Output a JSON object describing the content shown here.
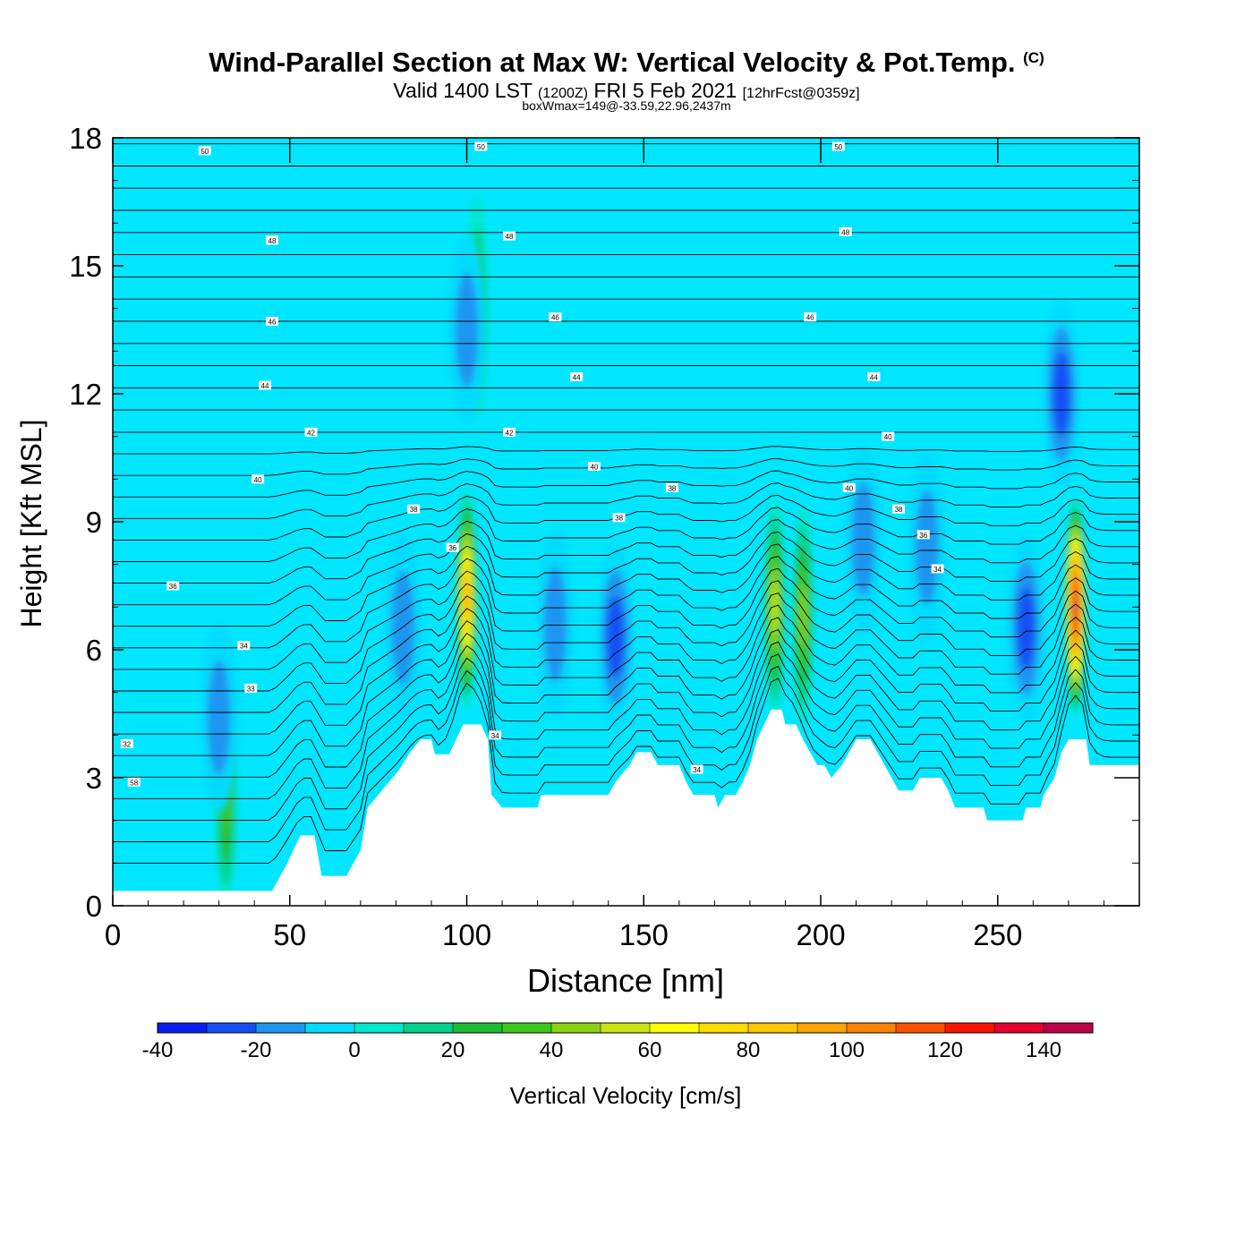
{
  "title": {
    "main": "Wind-Parallel Section at Max W: Vertical Velocity & Pot.Temp.",
    "copyright": "(C)",
    "valid_a": "Valid 1400 LST",
    "valid_z": "(1200Z)",
    "valid_b": "FRI 5 Feb 2021",
    "fcst": "[12hrFcst@0359z]",
    "box": "boxWmax=149@-33.59,22.96,2437m"
  },
  "chart_data": {
    "type": "heatmap",
    "xlabel": "Distance [nm]",
    "ylabel": "Height [Kft MSL]",
    "xlim": [
      0,
      290
    ],
    "ylim": [
      0,
      18
    ],
    "xticks": [
      0,
      50,
      100,
      150,
      200,
      250
    ],
    "yticks": [
      0,
      3,
      6,
      9,
      12,
      15,
      18
    ],
    "background_color": "#00e6ff",
    "terrain_color": "#ffffff",
    "colorbar": {
      "label": "Vertical Velocity [cm/s]",
      "bins": [
        -40,
        -30,
        -20,
        -10,
        0,
        10,
        20,
        30,
        40,
        50,
        60,
        70,
        80,
        90,
        100,
        110,
        120,
        130,
        140,
        150
      ],
      "tick_labels": [
        "-40",
        "-20",
        "0",
        "20",
        "40",
        "60",
        "80",
        "100",
        "120",
        "140"
      ],
      "colors": [
        "#0a1ef0",
        "#1450f5",
        "#1e96f0",
        "#00dcff",
        "#00e8cc",
        "#00d28c",
        "#1ebe32",
        "#3cc81e",
        "#8cd214",
        "#c8e614",
        "#ffff00",
        "#ffdc00",
        "#ffc800",
        "#ffa500",
        "#ff8200",
        "#ff5000",
        "#ff1400",
        "#e6002d",
        "#be0046"
      ]
    },
    "terrain_kft": [
      [
        0,
        0.35
      ],
      [
        45,
        0.35
      ],
      [
        47,
        0.65
      ],
      [
        49,
        0.95
      ],
      [
        51,
        1.3
      ],
      [
        53,
        1.65
      ],
      [
        57,
        1.65
      ],
      [
        59,
        0.7
      ],
      [
        66,
        0.7
      ],
      [
        68,
        1.0
      ],
      [
        70,
        1.3
      ],
      [
        72,
        2.3
      ],
      [
        75,
        2.6
      ],
      [
        78,
        2.9
      ],
      [
        81,
        3.2
      ],
      [
        84,
        3.6
      ],
      [
        87,
        3.9
      ],
      [
        90,
        3.9
      ],
      [
        91,
        3.55
      ],
      [
        95,
        3.55
      ],
      [
        97,
        3.9
      ],
      [
        99,
        4.25
      ],
      [
        104,
        4.25
      ],
      [
        106,
        3.9
      ],
      [
        107,
        2.6
      ],
      [
        110,
        2.3
      ],
      [
        120,
        2.3
      ],
      [
        121,
        2.6
      ],
      [
        140,
        2.6
      ],
      [
        142,
        2.9
      ],
      [
        146,
        3.3
      ],
      [
        148,
        3.6
      ],
      [
        152,
        3.6
      ],
      [
        154,
        3.3
      ],
      [
        160,
        3.3
      ],
      [
        162,
        2.9
      ],
      [
        164,
        2.6
      ],
      [
        170,
        2.6
      ],
      [
        171,
        2.3
      ],
      [
        173,
        2.6
      ],
      [
        176,
        2.6
      ],
      [
        178,
        2.9
      ],
      [
        180,
        3.3
      ],
      [
        182,
        3.9
      ],
      [
        184,
        4.25
      ],
      [
        186,
        4.6
      ],
      [
        189,
        4.6
      ],
      [
        190,
        4.25
      ],
      [
        193,
        4.25
      ],
      [
        195,
        3.9
      ],
      [
        197,
        3.6
      ],
      [
        199,
        3.3
      ],
      [
        201,
        3.3
      ],
      [
        203,
        3.0
      ],
      [
        206,
        3.3
      ],
      [
        208,
        3.6
      ],
      [
        210,
        3.9
      ],
      [
        214,
        3.9
      ],
      [
        216,
        3.6
      ],
      [
        218,
        3.3
      ],
      [
        220,
        3.0
      ],
      [
        222,
        2.7
      ],
      [
        226,
        2.7
      ],
      [
        228,
        3.0
      ],
      [
        234,
        3.0
      ],
      [
        236,
        2.7
      ],
      [
        238,
        2.3
      ],
      [
        246,
        2.3
      ],
      [
        247,
        2.0
      ],
      [
        257,
        2.0
      ],
      [
        258,
        2.3
      ],
      [
        262,
        2.3
      ],
      [
        263,
        2.6
      ],
      [
        266,
        3.0
      ],
      [
        268,
        3.6
      ],
      [
        270,
        3.9
      ],
      [
        275,
        3.9
      ],
      [
        276,
        3.3
      ],
      [
        290,
        3.3
      ]
    ],
    "vertical_velocity_cells": [
      {
        "x": 100,
        "y": 7.2,
        "peak": 95,
        "note": "updraft"
      },
      {
        "x": 187,
        "y": 7.0,
        "peak": 58
      },
      {
        "x": 195,
        "y": 6.8,
        "peak": 50
      },
      {
        "x": 32,
        "y": 2.5,
        "peak": 35
      },
      {
        "x": 272,
        "y": 7.0,
        "peak": 149
      },
      {
        "x": 103,
        "y": 14.0,
        "peak": 25
      },
      {
        "x": 100,
        "y": 13.5,
        "peak": -20
      },
      {
        "x": 82,
        "y": 6.5,
        "peak": -20
      },
      {
        "x": 125,
        "y": 6.6,
        "peak": -22
      },
      {
        "x": 142,
        "y": 6.3,
        "peak": -30
      },
      {
        "x": 212,
        "y": 8.6,
        "peak": -18
      },
      {
        "x": 230,
        "y": 8.4,
        "peak": -18
      },
      {
        "x": 258,
        "y": 6.5,
        "peak": -30
      },
      {
        "x": 268,
        "y": 12.0,
        "peak": -30
      },
      {
        "x": 30,
        "y": 4.4,
        "peak": -20
      }
    ],
    "theta_contour_labels": [
      {
        "text": "50",
        "x": 26,
        "y": 17.7
      },
      {
        "text": "50",
        "x": 104,
        "y": 17.8
      },
      {
        "text": "50",
        "x": 205,
        "y": 17.8
      },
      {
        "text": "48",
        "x": 45,
        "y": 15.6
      },
      {
        "text": "48",
        "x": 112,
        "y": 15.7
      },
      {
        "text": "48",
        "x": 207,
        "y": 15.8
      },
      {
        "text": "46",
        "x": 45,
        "y": 13.7
      },
      {
        "text": "46",
        "x": 125,
        "y": 13.8
      },
      {
        "text": "46",
        "x": 197,
        "y": 13.8
      },
      {
        "text": "44",
        "x": 43,
        "y": 12.2
      },
      {
        "text": "44",
        "x": 131,
        "y": 12.4
      },
      {
        "text": "44",
        "x": 215,
        "y": 12.4
      },
      {
        "text": "42",
        "x": 56,
        "y": 11.1
      },
      {
        "text": "42",
        "x": 112,
        "y": 11.1
      },
      {
        "text": "40",
        "x": 41,
        "y": 10.0
      },
      {
        "text": "40",
        "x": 136,
        "y": 10.3
      },
      {
        "text": "40",
        "x": 208,
        "y": 9.8
      },
      {
        "text": "40",
        "x": 219,
        "y": 11.0
      },
      {
        "text": "38",
        "x": 85,
        "y": 9.3
      },
      {
        "text": "38",
        "x": 143,
        "y": 9.1
      },
      {
        "text": "38",
        "x": 158,
        "y": 9.8
      },
      {
        "text": "38",
        "x": 222,
        "y": 9.3
      },
      {
        "text": "36",
        "x": 96,
        "y": 8.4
      },
      {
        "text": "36",
        "x": 17,
        "y": 7.5
      },
      {
        "text": "36",
        "x": 229,
        "y": 8.7
      },
      {
        "text": "34",
        "x": 37,
        "y": 6.1
      },
      {
        "text": "34",
        "x": 108,
        "y": 4.0
      },
      {
        "text": "34",
        "x": 165,
        "y": 3.2
      },
      {
        "text": "34",
        "x": 233,
        "y": 7.9
      },
      {
        "text": "33",
        "x": 39,
        "y": 5.1
      },
      {
        "text": "32",
        "x": 4,
        "y": 3.8
      },
      {
        "text": "58",
        "x": 6,
        "y": 2.9
      }
    ]
  }
}
